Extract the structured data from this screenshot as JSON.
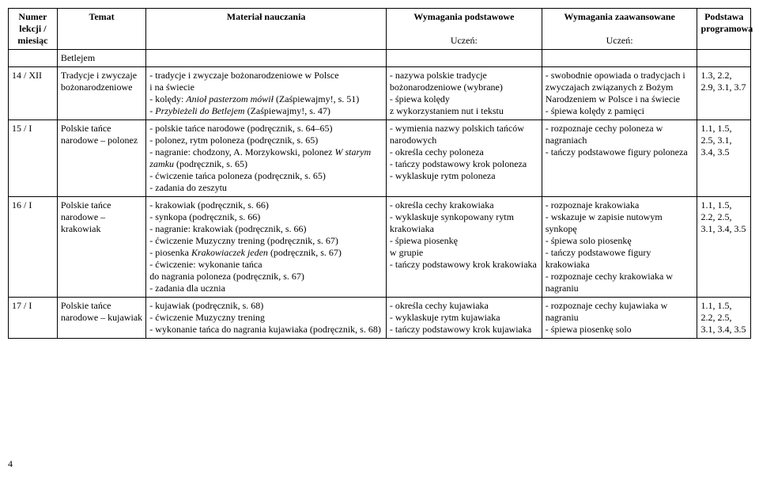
{
  "headers": {
    "numer": "Numer lekcji / miesiąc",
    "temat": "Temat",
    "material": "Materiał nauczania",
    "podstawowe": "Wymagania podstawowe",
    "uczen1": "Uczeń:",
    "zaawansowane": "Wymagania zaawansowane",
    "uczen2": "Uczeń:",
    "podstawa": "Podstawa programowa"
  },
  "rows": [
    {
      "numer": "",
      "temat": "Betlejem",
      "material": "",
      "podstawowe": "",
      "zaawansowane": "",
      "podstawa": ""
    },
    {
      "numer": "14 / XII",
      "temat": "Tradycje i zwyczaje bożonarodzeniowe",
      "material": "- tradycje i zwyczaje bożonarodzeniowe w Polsce\ni na świecie\n- kolędy: <i>Anioł pasterzom mówił</i> (Zaśpiewajmy!, s. 51)\n- <i>Przybieżeli do Betlejem</i> (Zaśpiewajmy!, s. 47)",
      "podstawowe": "- nazywa polskie tradycje bożonarodzeniowe (wybrane)\n- śpiewa kolędy\nz wykorzystaniem nut i tekstu",
      "zaawansowane": "- swobodnie opowiada o tradycjach i zwyczajach związanych z Bożym Narodzeniem w Polsce i na świecie\n- śpiewa kolędy z pamięci",
      "podstawa": "1.3, 2.2, 2.9, 3.1, 3.7"
    },
    {
      "numer": "15 / I",
      "temat": "Polskie tańce narodowe – polonez",
      "material": "- polskie tańce narodowe (podręcznik, s. 64–65)\n- polonez, rytm poloneza (podręcznik, s. 65)\n- nagranie: chodzony, A. Morzykowski, polonez <i>W starym zamku</i> (podręcznik, s. 65)\n- ćwiczenie tańca poloneza (podręcznik, s. 65)\n- zadania do zeszytu",
      "podstawowe": "- wymienia nazwy polskich tańców narodowych\n- określa cechy poloneza\n- tańczy podstawowy krok poloneza\n- wyklaskuje rytm poloneza",
      "zaawansowane": "- rozpoznaje cechy poloneza w nagraniach\n- tańczy podstawowe figury poloneza",
      "podstawa": "1.1, 1.5, 2.5, 3.1, 3.4, 3.5"
    },
    {
      "numer": "16 / I",
      "temat": "Polskie tańce narodowe – krakowiak",
      "material": "- krakowiak (podręcznik, s. 66)\n- synkopa (podręcznik, s. 66)\n- nagranie: krakowiak (podręcznik, s. 66)\n- ćwiczenie Muzyczny trening (podręcznik, s. 67)\n- piosenka <i>Krakowiaczek jeden</i> (podręcznik, s. 67)\n- ćwiczenie: wykonanie tańca\ndo nagrania poloneza (podręcznik, s. 67)\n- zadania dla ucznia",
      "podstawowe": "- określa cechy krakowiaka\n- wyklaskuje synkopowany rytm krakowiaka\n- śpiewa piosenkę\nw grupie\n- tańczy podstawowy krok krakowiaka",
      "zaawansowane": "- rozpoznaje krakowiaka\n- wskazuje w zapisie nutowym synkopę\n- śpiewa solo piosenkę\n- tańczy podstawowe figury krakowiaka\n- rozpoznaje cechy krakowiaka w nagraniu",
      "podstawa": "1.1, 1.5, 2.2, 2.5, 3.1, 3.4, 3.5"
    },
    {
      "numer": "17 / I",
      "temat": "Polskie tańce narodowe – kujawiak",
      "material": "- kujawiak (podręcznik, s. 68)\n- ćwiczenie Muzyczny trening\n- wykonanie tańca do nagrania kujawiaka (podręcznik, s. 68)",
      "podstawowe": "- określa cechy kujawiaka\n- wyklaskuje rytm kujawiaka\n- tańczy podstawowy krok kujawiaka",
      "zaawansowane": "- rozpoznaje cechy kujawiaka w nagraniu\n- śpiewa piosenkę solo",
      "podstawa": "1.1, 1.5, 2.2, 2.5, 3.1, 3.4, 3.5"
    }
  ],
  "page_number": "4"
}
